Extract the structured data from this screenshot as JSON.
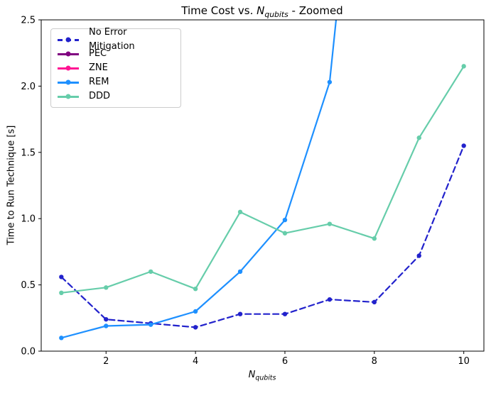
{
  "window": {
    "kind": "matplotlib-figure",
    "background": "#ffffff"
  },
  "title_full": "Time Cost vs. N_qubits - Zoomed",
  "title_parts": {
    "prefix": "Time Cost vs. ",
    "var": "N",
    "sub": "qubits",
    "suffix": " - Zoomed"
  },
  "xlabel_parts": {
    "var": "N",
    "sub": "qubits"
  },
  "chart_data": {
    "type": "line",
    "title": "Time Cost vs. N_qubits - Zoomed",
    "xlabel": "N_qubits",
    "ylabel": "Time to Run Technique [s]",
    "grid": false,
    "legend_position": "upper left",
    "x": [
      1,
      2,
      3,
      4,
      5,
      6,
      7,
      8,
      9,
      10
    ],
    "xlim": [
      0.55,
      10.45
    ],
    "ylim": [
      0,
      2.5
    ],
    "x_ticks": [
      2,
      4,
      6,
      8,
      10
    ],
    "y_ticks": [
      "0.0",
      "0.5",
      "1.0",
      "1.5",
      "2.0",
      "2.5"
    ],
    "axis_color": "#000000",
    "series": [
      {
        "name": "No Error Mitigation",
        "color": "#2222CC",
        "style": "dashed",
        "marker": "circle",
        "values": [
          0.56,
          0.24,
          0.21,
          0.18,
          0.28,
          0.28,
          0.39,
          0.37,
          0.72,
          1.55
        ]
      },
      {
        "name": "PEC",
        "color": "#800080",
        "style": "solid",
        "marker": "circle",
        "values": [],
        "note": "line not visible within zoomed y-range"
      },
      {
        "name": "ZNE",
        "color": "#FF1493",
        "style": "solid",
        "marker": "circle",
        "values": [],
        "note": "line not visible within zoomed y-range"
      },
      {
        "name": "REM",
        "color": "#1E90FF",
        "style": "solid",
        "marker": "circle",
        "values": [
          0.1,
          0.19,
          0.2,
          0.3,
          0.6,
          0.99,
          2.03,
          null,
          null,
          null
        ],
        "exits_top_at_x": 7.15,
        "note": "line rises above y-limit between x=7 and x=8"
      },
      {
        "name": "DDD",
        "color": "#66CDAA",
        "style": "solid",
        "marker": "circle",
        "values": [
          0.44,
          0.48,
          0.6,
          0.47,
          1.05,
          0.89,
          0.96,
          0.85,
          1.61,
          2.15
        ]
      }
    ]
  }
}
